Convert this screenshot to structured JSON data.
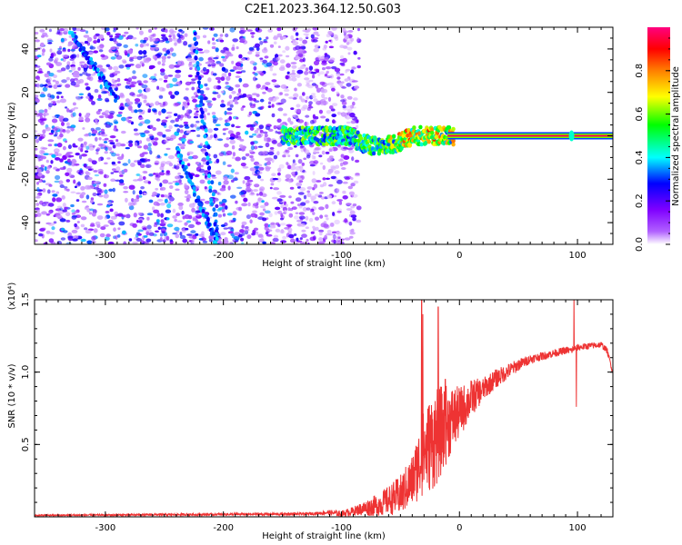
{
  "figure": {
    "title": "C2E1.2023.364.12.50.G03"
  },
  "chart_data": [
    {
      "type": "heatmap",
      "title": "C2E1.2023.364.12.50.G03",
      "xlabel": "Height of straight line (km)",
      "ylabel": "Frequency (Hz)",
      "xlim": [
        -360,
        130
      ],
      "ylim": [
        -50,
        50
      ],
      "x_ticks": [
        -300,
        -200,
        -100,
        0,
        100
      ],
      "y_ticks": [
        -40,
        -20,
        0,
        20,
        40
      ],
      "x_tick_labels": [
        "-300",
        "-200",
        "-100",
        "0",
        "100"
      ],
      "y_tick_labels": [
        "-40",
        "-20",
        "0",
        "20",
        "40"
      ],
      "colorbar": {
        "label": "Normalized spectral amplitude",
        "range": [
          0,
          1
        ],
        "ticks": [
          0.0,
          0.2,
          0.4,
          0.6,
          0.8
        ],
        "tick_labels": [
          "0.0",
          "0.2",
          "0.4",
          "0.6",
          "0.8"
        ],
        "colormap": [
          "#ffffff",
          "#7f00ff",
          "#0000ff",
          "#00ffff",
          "#00ff00",
          "#ffff00",
          "#ff7f00",
          "#ff0000",
          "#ff0080"
        ]
      },
      "features": {
        "noise_region_x": [
          -360,
          -95
        ],
        "carrier_frequency_hz": 0,
        "carrier_x_start": -150,
        "carrier_x_end": 130,
        "carrier_max_amplitude": 0.95,
        "diagonal_tracks": [
          {
            "x": [
              -330,
              -290
            ],
            "y": [
              48,
              17
            ]
          },
          {
            "x": [
              -225,
              -205
            ],
            "y": [
              48,
              -50
            ]
          },
          {
            "x": [
              -240,
              -205
            ],
            "y": [
              -5,
              -50
            ]
          }
        ],
        "disturbance_dip": {
          "x": [
            -95,
            -40
          ],
          "y_min": -8
        }
      }
    },
    {
      "type": "line",
      "xlabel": "Height of straight line (km)",
      "ylabel": "SNR (10 * v/v)",
      "y_multiplier": "(x10⁴)",
      "xlim": [
        -360,
        130
      ],
      "ylim": [
        0.0,
        1.5
      ],
      "x_ticks": [
        -300,
        -200,
        -100,
        0,
        100
      ],
      "y_ticks": [
        0.5,
        1.0,
        1.5
      ],
      "x_tick_labels": [
        "-300",
        "-200",
        "-100",
        "0",
        "100"
      ],
      "y_tick_labels": [
        "0.5",
        "1.0",
        "1.5"
      ],
      "line_color": "#ee3333",
      "envelope": {
        "x": [
          -360,
          -130,
          -110,
          -100,
          -90,
          -70,
          -50,
          -40,
          -35,
          -30,
          -25,
          -20,
          -10,
          0,
          10,
          20,
          30,
          40,
          50,
          60,
          70,
          80,
          90,
          95,
          100,
          110,
          120,
          125,
          130
        ],
        "y": [
          0.01,
          0.02,
          0.03,
          0.02,
          0.04,
          0.08,
          0.15,
          0.25,
          0.35,
          0.45,
          0.5,
          0.55,
          0.65,
          0.72,
          0.82,
          0.88,
          0.95,
          1.0,
          1.05,
          1.09,
          1.11,
          1.13,
          1.15,
          1.15,
          1.17,
          1.18,
          1.19,
          1.15,
          1.0
        ]
      },
      "noise_amplitude": {
        "x": [
          -360,
          -120,
          -90,
          -60,
          -40,
          -30,
          -20,
          0,
          20,
          60,
          130
        ],
        "a": [
          0.005,
          0.01,
          0.03,
          0.1,
          0.18,
          0.3,
          0.35,
          0.18,
          0.08,
          0.03,
          0.02
        ]
      },
      "spikes": [
        {
          "x": -32,
          "y": 1.55
        },
        {
          "x": -31,
          "y": 1.4
        },
        {
          "x": -18,
          "y": 1.45
        },
        {
          "x": -12,
          "y": 0.95
        },
        {
          "x": 97,
          "y": 1.55
        },
        {
          "x": 99,
          "y": 0.76
        }
      ]
    }
  ]
}
